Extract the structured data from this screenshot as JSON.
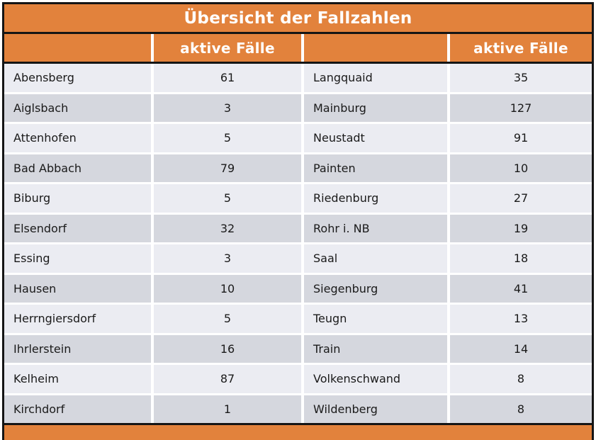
{
  "table": {
    "title": "Übersicht der Fallzahlen",
    "header_label": "aktive Fälle"
  },
  "chart_data": {
    "type": "table",
    "title": "Übersicht der Fallzahlen",
    "columns": [
      "",
      "aktive Fälle",
      "",
      "aktive Fälle"
    ],
    "rows": [
      [
        "Abensberg",
        61,
        "Langquaid",
        35
      ],
      [
        "Aiglsbach",
        3,
        "Mainburg",
        127
      ],
      [
        "Attenhofen",
        5,
        "Neustadt",
        91
      ],
      [
        "Bad Abbach",
        79,
        "Painten",
        10
      ],
      [
        "Biburg",
        5,
        "Riedenburg",
        27
      ],
      [
        "Elsendorf",
        32,
        "Rohr i. NB",
        19
      ],
      [
        "Essing",
        3,
        "Saal",
        18
      ],
      [
        "Hausen",
        10,
        "Siegenburg",
        41
      ],
      [
        "Herrngiersdorf",
        5,
        "Teugn",
        13
      ],
      [
        "Ihrlerstein",
        16,
        "Train",
        14
      ],
      [
        "Kelheim",
        87,
        "Volkenschwand",
        8
      ],
      [
        "Kirchdorf",
        1,
        "Wildenberg",
        8
      ]
    ]
  },
  "colors": {
    "accent_orange": "#e2823c",
    "row_light": "#ebecf2",
    "row_dark": "#d5d7de",
    "border_black": "#151515",
    "separator_white": "#ffffff",
    "text_dark": "#1a1a1a"
  }
}
